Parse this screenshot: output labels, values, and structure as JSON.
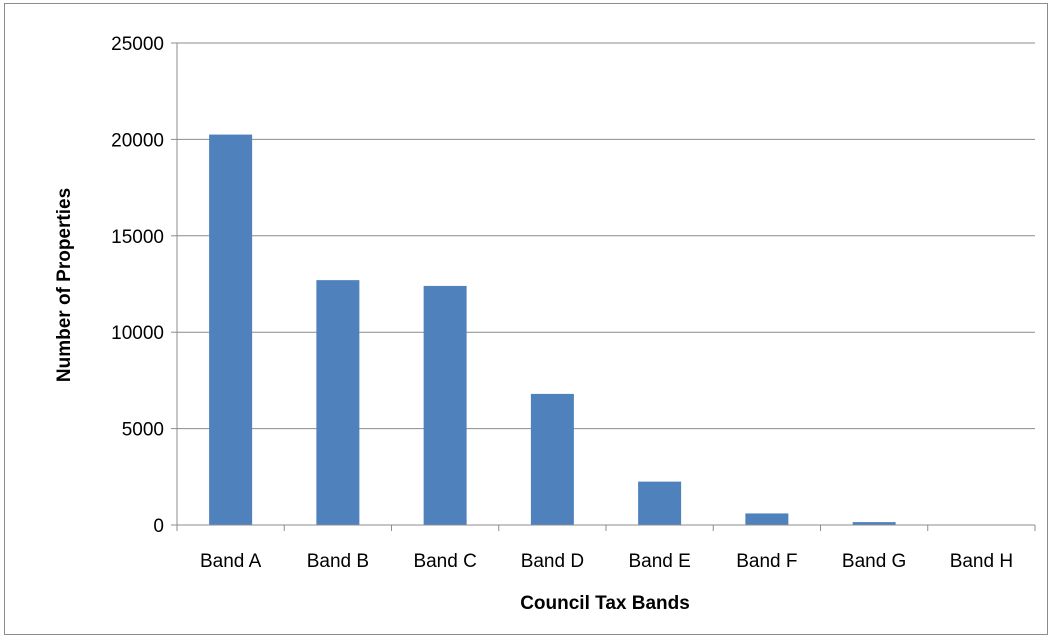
{
  "chart_data": {
    "type": "bar",
    "title": "",
    "xlabel": "Council Tax Bands",
    "ylabel": "Number of Properties",
    "categories": [
      "Band A",
      "Band B",
      "Band C",
      "Band D",
      "Band E",
      "Band F",
      "Band G",
      "Band H"
    ],
    "values": [
      20250,
      12700,
      12400,
      6800,
      2250,
      600,
      150,
      10
    ],
    "ylim": [
      0,
      25000
    ],
    "yticks": [
      0,
      5000,
      10000,
      15000,
      20000,
      25000
    ],
    "grid": true,
    "legend": "none",
    "bar_color": "#4F81BD",
    "grid_color": "#8c8c8c"
  }
}
